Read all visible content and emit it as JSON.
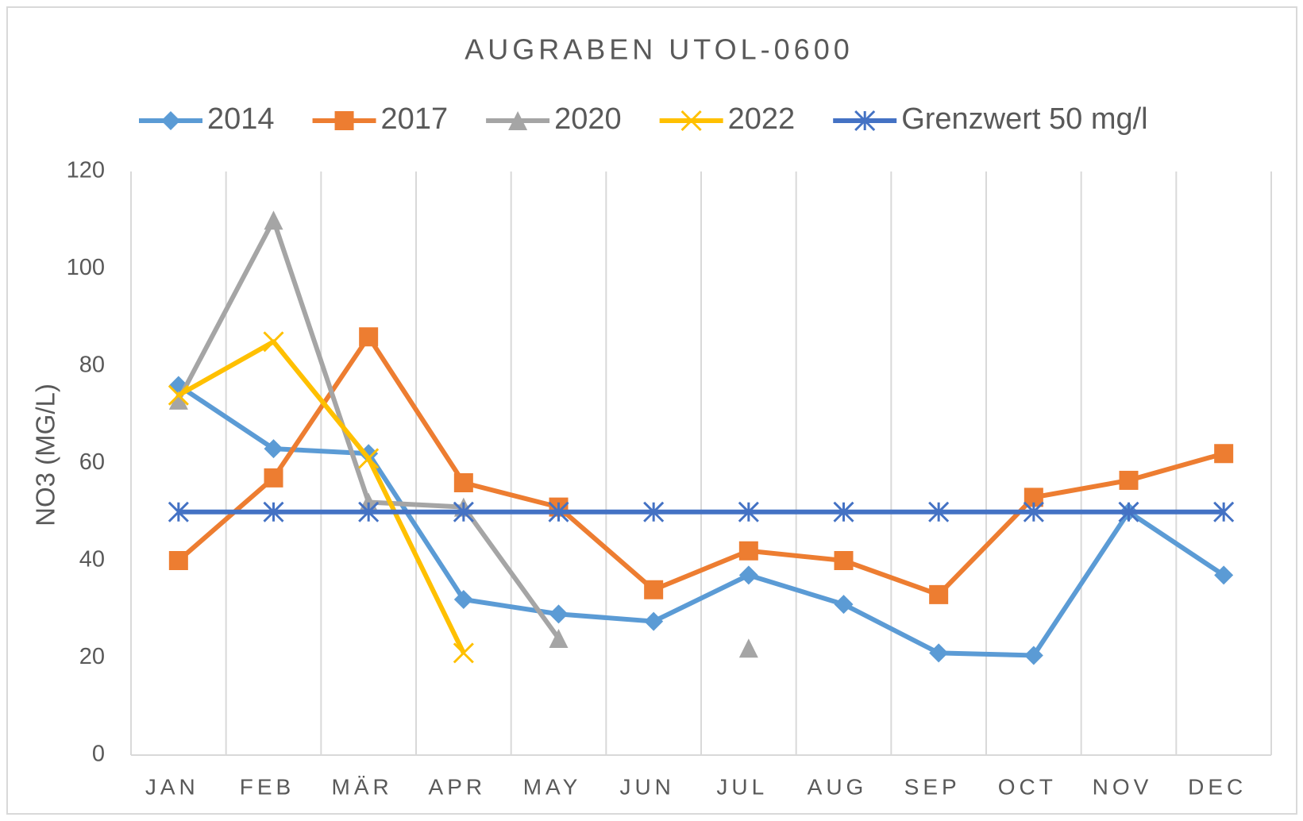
{
  "chart_data": {
    "type": "line",
    "title": "AUGRABEN UTOL-0600",
    "y_label": "NO3 (MG/L)",
    "categories": [
      "JAN",
      "FEB",
      "MÄR",
      "APR",
      "MAY",
      "JUN",
      "JUL",
      "AUG",
      "SEP",
      "OCT",
      "NOV",
      "DEC"
    ],
    "series": [
      {
        "name": "2014",
        "color": "#5b9bd5",
        "marker": "diamond",
        "values": [
          76,
          63,
          62,
          32,
          29,
          27.5,
          37,
          31,
          21,
          20.5,
          50,
          37
        ]
      },
      {
        "name": "2017",
        "color": "#ed7d31",
        "marker": "square",
        "values": [
          40,
          57,
          86,
          56,
          51,
          34,
          42,
          40,
          33,
          53,
          56.5,
          62
        ]
      },
      {
        "name": "2020",
        "color": "#a5a5a5",
        "marker": "triangle",
        "values": [
          73,
          110,
          52,
          51,
          24,
          null,
          22,
          null,
          null,
          null,
          null,
          null
        ]
      },
      {
        "name": "2022",
        "color": "#ffc000",
        "marker": "x",
        "values": [
          74,
          85,
          61,
          21,
          null,
          null,
          null,
          null,
          null,
          null,
          null,
          null
        ]
      },
      {
        "name": "Grenzwert 50 mg/l",
        "color": "#4472c4",
        "marker": "asterisk",
        "values": [
          50,
          50,
          50,
          50,
          50,
          50,
          50,
          50,
          50,
          50,
          50,
          50
        ]
      }
    ],
    "ylim": [
      0,
      120
    ],
    "yticks": [
      0,
      20,
      40,
      60,
      80,
      100,
      120
    ],
    "legend": "top"
  }
}
